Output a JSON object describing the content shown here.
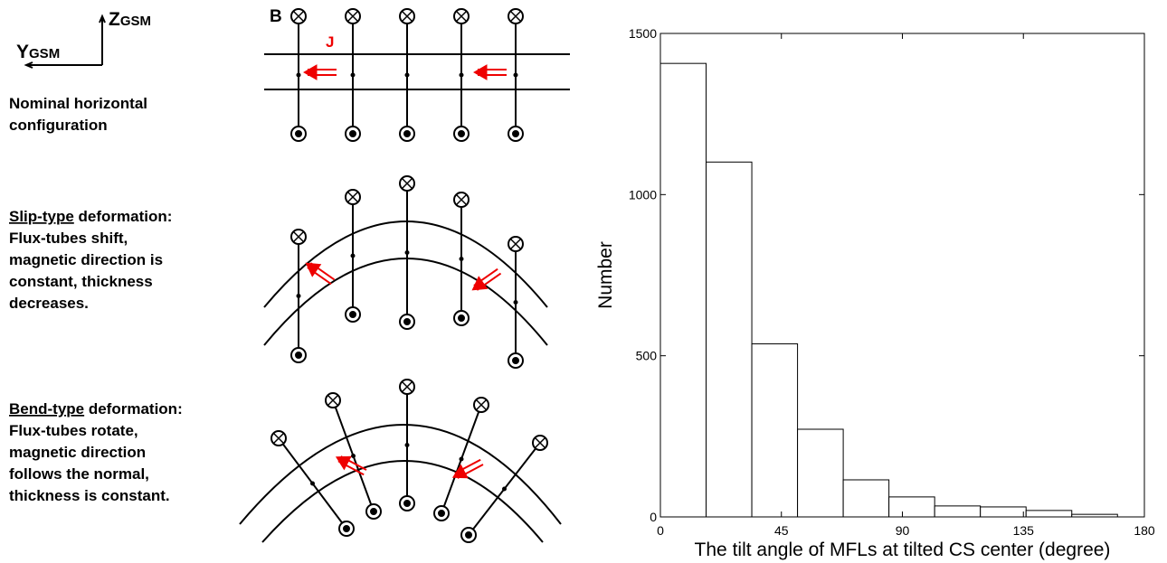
{
  "diagram": {
    "axes": {
      "z": "Z",
      "z_sub": "GSM",
      "y": "Y",
      "y_sub": "GSM"
    },
    "field_label": "B",
    "current_label": "J",
    "panels": [
      {
        "lines": [
          "Nominal horizontal",
          "configuration"
        ]
      },
      {
        "underlined": "Slip-type",
        "rest": " deformation:",
        "lines": [
          "Flux-tubes shift,",
          "magnetic direction is",
          "constant, thickness",
          "decreases."
        ]
      },
      {
        "underlined": "Bend-type",
        "rest": " deformation:",
        "lines": [
          "Flux-tubes rotate,",
          "magnetic direction",
          "follows the normal,",
          "thickness is constant."
        ]
      }
    ]
  },
  "chart_data": {
    "type": "histogram",
    "xlabel": "The tilt angle of MFLs at tilted CS center (degree)",
    "ylabel": "Number",
    "bins": [
      0,
      17,
      34,
      51,
      68,
      85,
      102,
      119,
      136,
      153,
      170
    ],
    "values": [
      1407,
      1101,
      537,
      272,
      115,
      62,
      34,
      31,
      20,
      8
    ],
    "color": "#ffffff",
    "xlim": [
      0,
      180
    ],
    "ylim": [
      0,
      1500
    ],
    "xticks": [
      0,
      45,
      90,
      135,
      180
    ],
    "yticks": [
      0,
      500,
      1000,
      1500
    ]
  }
}
